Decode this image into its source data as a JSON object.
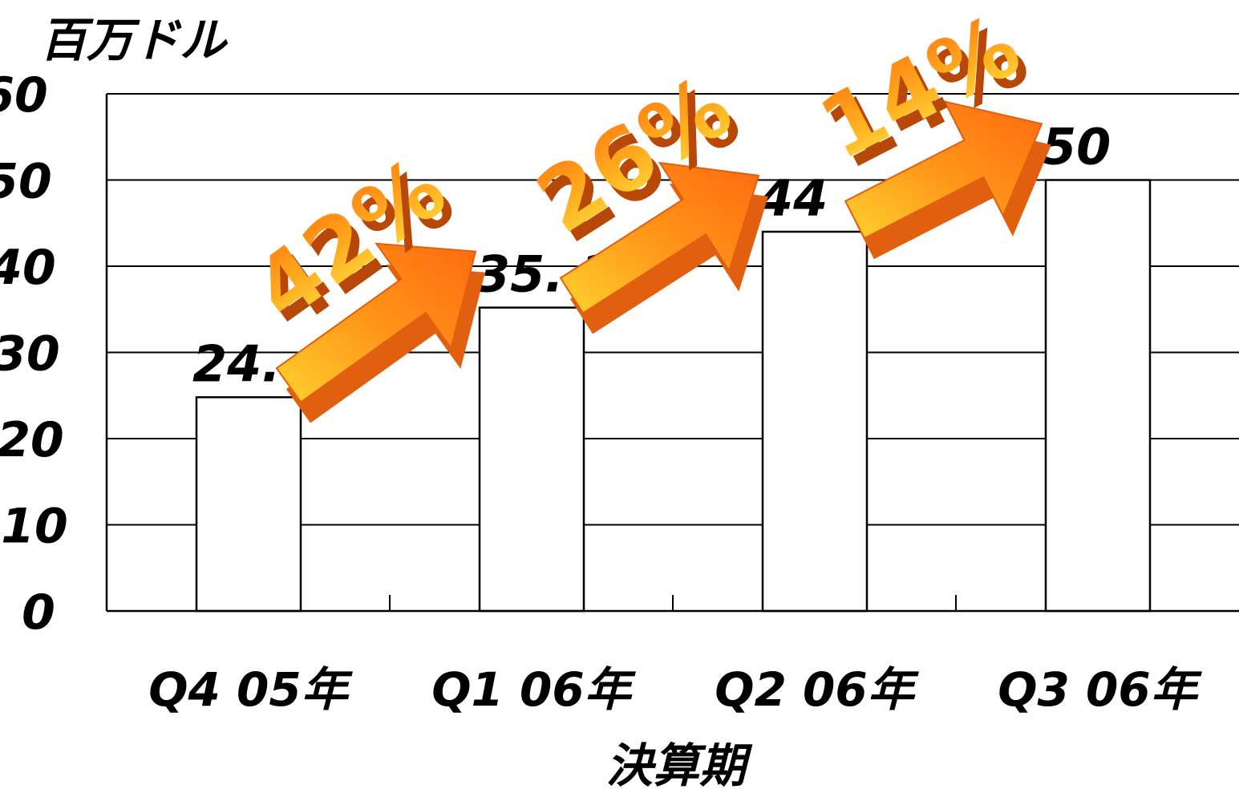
{
  "chart_data": {
    "type": "bar",
    "ylabel": "百万ドル",
    "xlabel": "決算期",
    "categories": [
      "Q4  05年",
      "Q1  06年",
      "Q2  06年",
      "Q3  06年"
    ],
    "values": [
      24.8,
      35.2,
      44,
      50
    ],
    "data_labels": [
      "24. 8",
      "35. 2",
      "44",
      "50"
    ],
    "yticks": [
      "0",
      "10",
      "20",
      "30",
      "40",
      "50",
      "60"
    ],
    "ylim": [
      0,
      60
    ],
    "grid": true,
    "bar_fill": "#ffffff",
    "growth_annotations": [
      {
        "label": "42%",
        "from": 0,
        "to": 1
      },
      {
        "label": "26%",
        "from": 1,
        "to": 2
      },
      {
        "label": "14%",
        "from": 2,
        "to": 3
      }
    ],
    "colors": {
      "arrow_dark": "#e06010",
      "arrow_mid": "#ff8a1a",
      "arrow_light": "#ffcc30",
      "text": "#000000"
    }
  }
}
